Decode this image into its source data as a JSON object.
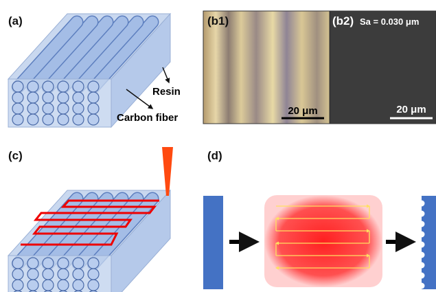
{
  "panels": {
    "a": {
      "label": "(a)",
      "resin": "Resin",
      "fiber": "Carbon fiber"
    },
    "b1": {
      "label": "(b1)",
      "scale": "20 μm"
    },
    "b2": {
      "label": "(b2)",
      "roughness": "Sa = 0.030 μm",
      "scale": "20 μm"
    },
    "c": {
      "label": "(c)"
    },
    "d": {
      "label": "(d)"
    }
  }
}
